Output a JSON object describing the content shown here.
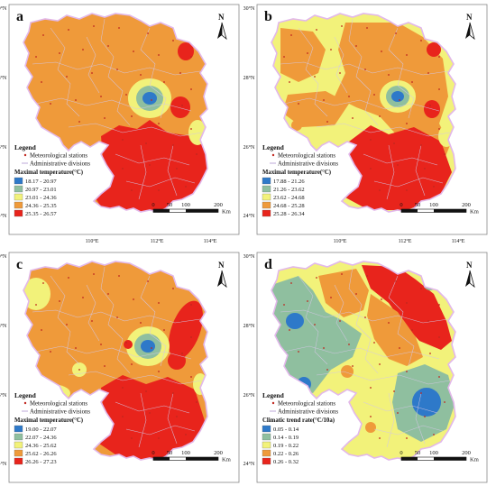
{
  "legend_common": {
    "title": "Legend",
    "stations": "Meteorological stations",
    "divisions": "Administrative divisions",
    "scale_ticks": [
      "0",
      "50",
      "100",
      "200"
    ],
    "scale_unit": "Km",
    "north": "N"
  },
  "axes": {
    "lat_labels": [
      "30°N",
      "28°N",
      "26°N",
      "24°N"
    ],
    "lon_labels": [
      "110°E",
      "112°E",
      "114°E"
    ]
  },
  "colors": {
    "c1": "#2e79c9",
    "c2": "#8fbf9f",
    "c3": "#f2f27a",
    "c4": "#ef9a3a",
    "c5": "#e8241c",
    "boundary_purple": "#e2b8ea",
    "frame": "#888888"
  },
  "panels": [
    {
      "letter": "a",
      "legend_title": "Maximal temperature(°C)",
      "classes": [
        "18.17 - 20.97",
        "20.97 - 23.01",
        "23.01 - 24.36",
        "24.36 - 25.35",
        "25.35 - 26.57"
      ]
    },
    {
      "letter": "b",
      "legend_title": "Maximal temperature(°C)",
      "classes": [
        "17.88 - 21.26",
        "21.26 - 23.62",
        "23.62 - 24.68",
        "24.68 - 25.28",
        "25.28 - 26.34"
      ]
    },
    {
      "letter": "c",
      "legend_title": "Maximal temperature(°C)",
      "classes": [
        "19.00 - 22.07",
        "22.07 - 24.36",
        "24.36 - 25.62",
        "25.62 - 26.26",
        "26.26 - 27.23"
      ]
    },
    {
      "letter": "d",
      "legend_title": "Climatic trend rate(°C/10a)",
      "classes": [
        "0.05 - 0.14",
        "0.14 - 0.19",
        "0.19 - 0.22",
        "0.22 - 0.26",
        "0.26 - 0.32"
      ]
    }
  ]
}
